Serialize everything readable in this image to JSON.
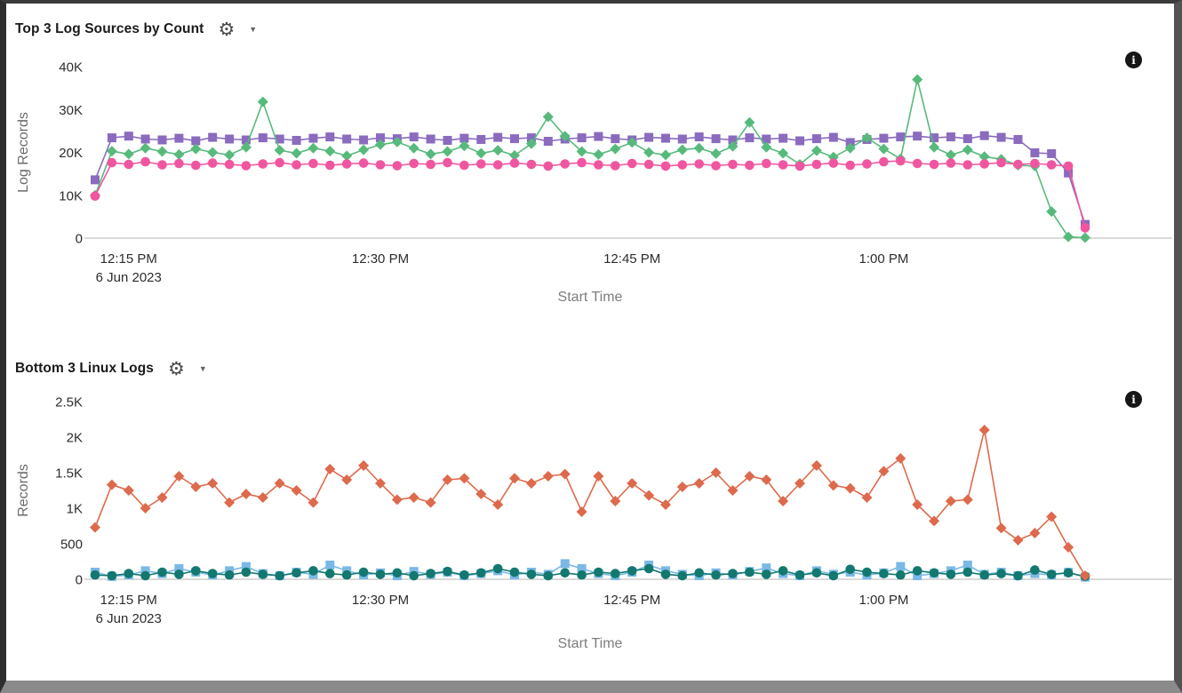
{
  "icons": {
    "gear": "⚙",
    "dropdown_caret": "▼",
    "info": "i"
  },
  "chart_data": [
    {
      "type": "line",
      "title": "Top 3 Log Sources by Count",
      "ylabel": "Log Records",
      "xlabel": "Start Time",
      "ylim": [
        0,
        40000
      ],
      "grid": "none",
      "legend": "none",
      "yticks": [
        {
          "v": 0,
          "label": "0"
        },
        {
          "v": 10000,
          "label": "10K"
        },
        {
          "v": 20000,
          "label": "20K"
        },
        {
          "v": 30000,
          "label": "30K"
        },
        {
          "v": 40000,
          "label": "40K"
        }
      ],
      "x_unit": "one point per minute starting 12:13 PM",
      "x_ticks": [
        {
          "minute": 2,
          "label": "12:15 PM",
          "sublabel": "6 Jun 2023"
        },
        {
          "minute": 17,
          "label": "12:30 PM"
        },
        {
          "minute": 32,
          "label": "12:45 PM"
        },
        {
          "minute": 47,
          "label": "1:00 PM"
        }
      ],
      "series": [
        {
          "name": "purple-squares",
          "marker": "square",
          "color": "#8a6bbe",
          "values": [
            13600,
            23400,
            23800,
            23100,
            22900,
            23300,
            22700,
            23500,
            23100,
            22900,
            23400,
            23100,
            22800,
            23300,
            23600,
            23100,
            22900,
            23400,
            23200,
            23600,
            23100,
            22800,
            23300,
            23000,
            23500,
            23200,
            23400,
            22600,
            23100,
            23400,
            23700,
            23200,
            22900,
            23500,
            23300,
            23100,
            23600,
            23200,
            22900,
            23400,
            23100,
            23300,
            22700,
            23200,
            23500,
            22300,
            23000,
            23300,
            23600,
            23800,
            23400,
            23600,
            23200,
            23900,
            23500,
            23000,
            19900,
            19700,
            15200,
            3200
          ]
        },
        {
          "name": "green-diamonds",
          "marker": "diamond",
          "color": "#57ba7c",
          "values": [
            10000,
            20300,
            19600,
            21000,
            20200,
            19500,
            20800,
            20000,
            19400,
            21200,
            31800,
            20500,
            19800,
            21000,
            20300,
            19200,
            20600,
            21800,
            22400,
            21000,
            19600,
            20200,
            21500,
            19800,
            20500,
            19300,
            22000,
            28300,
            23800,
            20200,
            19500,
            20800,
            22300,
            20000,
            19400,
            20600,
            21000,
            19700,
            21400,
            27000,
            21200,
            19800,
            17200,
            20400,
            18900,
            21000,
            23400,
            20800,
            18500,
            37000,
            21200,
            19400,
            20600,
            19000,
            18400,
            17000,
            16800,
            6200,
            300,
            100
          ]
        },
        {
          "name": "pink-circles",
          "marker": "circle",
          "color": "#f0569f",
          "values": [
            9800,
            17600,
            17200,
            17800,
            17100,
            17400,
            17000,
            17500,
            17200,
            16900,
            17300,
            17600,
            17100,
            17400,
            17000,
            17300,
            17500,
            17100,
            16900,
            17400,
            17200,
            17600,
            17000,
            17300,
            17100,
            17500,
            17200,
            16800,
            17300,
            17600,
            17100,
            16900,
            17400,
            17200,
            16800,
            17100,
            17300,
            16900,
            17200,
            17000,
            17400,
            17100,
            16800,
            17200,
            17500,
            17000,
            17300,
            17800,
            18000,
            17400,
            17200,
            17500,
            17100,
            17300,
            17600,
            17200,
            17400,
            17100,
            16800,
            2400
          ]
        }
      ]
    },
    {
      "type": "line",
      "title": "Bottom 3 Linux Logs",
      "ylabel": "Records",
      "xlabel": "Start Time",
      "ylim": [
        0,
        2500
      ],
      "grid": "none",
      "legend": "none",
      "yticks": [
        {
          "v": 0,
          "label": "0"
        },
        {
          "v": 500,
          "label": "500"
        },
        {
          "v": 1000,
          "label": "1K"
        },
        {
          "v": 1500,
          "label": "1.5K"
        },
        {
          "v": 2000,
          "label": "2K"
        },
        {
          "v": 2500,
          "label": "2.5K"
        }
      ],
      "x_unit": "one point per minute starting 12:13 PM",
      "x_ticks": [
        {
          "minute": 2,
          "label": "12:15 PM",
          "sublabel": "6 Jun 2023"
        },
        {
          "minute": 17,
          "label": "12:30 PM"
        },
        {
          "minute": 32,
          "label": "12:45 PM"
        },
        {
          "minute": 47,
          "label": "1:00 PM"
        }
      ],
      "series": [
        {
          "name": "lightblue-squares",
          "marker": "square",
          "color": "#7ab8e6",
          "values": [
            100,
            40,
            60,
            120,
            80,
            150,
            100,
            60,
            120,
            180,
            80,
            50,
            100,
            70,
            200,
            120,
            60,
            90,
            50,
            110,
            70,
            100,
            50,
            80,
            120,
            60,
            100,
            70,
            220,
            150,
            80,
            50,
            100,
            200,
            120,
            70,
            50,
            90,
            60,
            110,
            160,
            80,
            50,
            120,
            70,
            100,
            60,
            90,
            180,
            50,
            80,
            120,
            200,
            70,
            100,
            50,
            80,
            60,
            100,
            30
          ]
        },
        {
          "name": "teal-circles",
          "marker": "circle",
          "color": "#13786f",
          "values": [
            60,
            50,
            80,
            50,
            100,
            70,
            120,
            80,
            60,
            100,
            70,
            50,
            90,
            120,
            80,
            60,
            100,
            70,
            90,
            50,
            80,
            110,
            60,
            90,
            150,
            100,
            70,
            50,
            90,
            60,
            100,
            80,
            120,
            150,
            70,
            50,
            90,
            60,
            80,
            100,
            70,
            120,
            60,
            90,
            50,
            140,
            100,
            80,
            60,
            120,
            90,
            70,
            100,
            60,
            80,
            50,
            130,
            70,
            90,
            40
          ]
        },
        {
          "name": "red-diamonds",
          "marker": "diamond",
          "color": "#dd6a4c",
          "values": [
            730,
            1330,
            1250,
            1000,
            1150,
            1450,
            1300,
            1350,
            1080,
            1200,
            1150,
            1350,
            1250,
            1080,
            1550,
            1400,
            1600,
            1350,
            1120,
            1150,
            1080,
            1400,
            1420,
            1200,
            1050,
            1420,
            1350,
            1450,
            1480,
            950,
            1450,
            1100,
            1350,
            1180,
            1050,
            1300,
            1350,
            1500,
            1250,
            1450,
            1400,
            1100,
            1350,
            1600,
            1320,
            1280,
            1150,
            1520,
            1700,
            1050,
            820,
            1100,
            1120,
            2100,
            720,
            550,
            650,
            880,
            450,
            50
          ]
        }
      ]
    }
  ]
}
